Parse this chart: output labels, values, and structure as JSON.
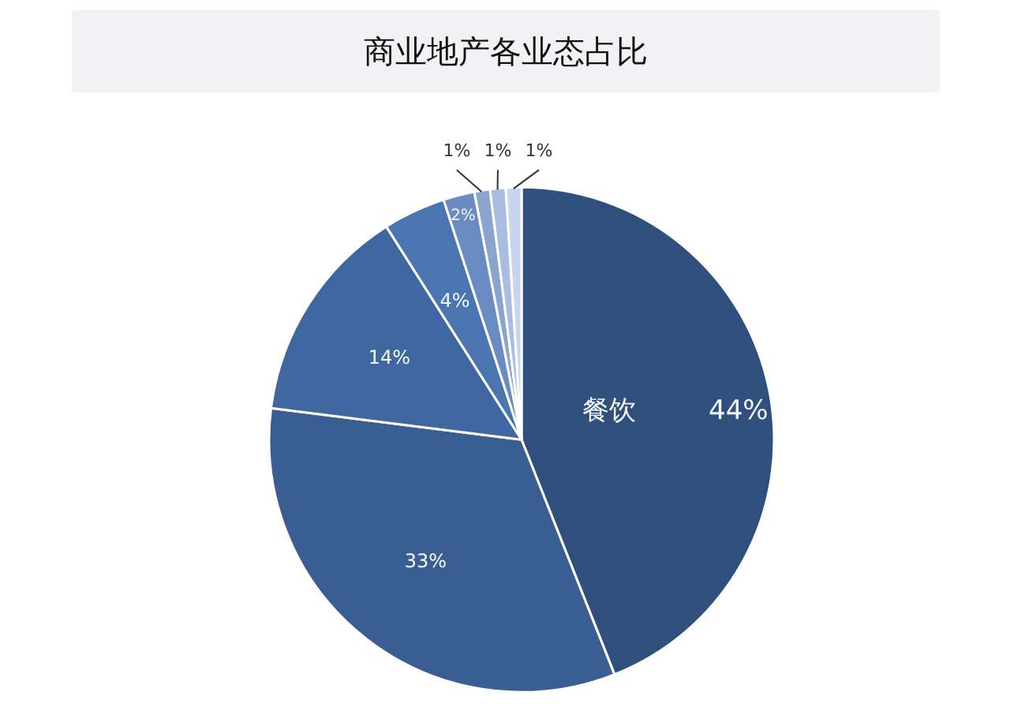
{
  "chart_data": {
    "type": "pie",
    "title": "商业地产各业态占比",
    "categories": [
      "餐饮",
      null,
      null,
      null,
      null,
      null,
      null,
      null
    ],
    "values": [
      44,
      33,
      14,
      4,
      2,
      1,
      1,
      1
    ],
    "value_labels": [
      "44%",
      "33%",
      "14%",
      "4%",
      "2%",
      "1%",
      "1%",
      "1%"
    ],
    "colors": [
      "#2f4f7d",
      "#3a5e92",
      "#3f67a0",
      "#4a75b1",
      "#6a8cc2",
      "#8aa4d0",
      "#a9bde2",
      "#c9d5ee"
    ]
  }
}
